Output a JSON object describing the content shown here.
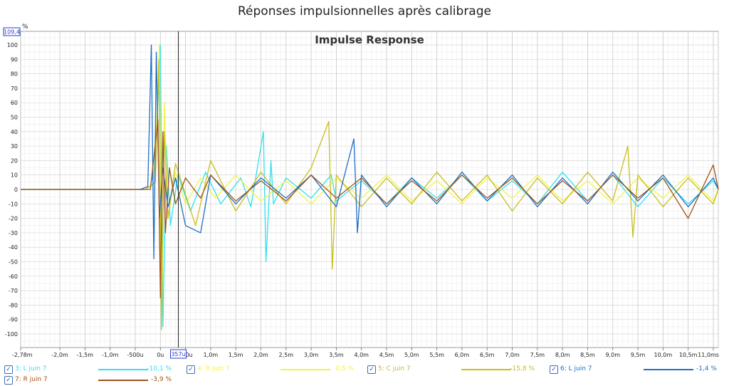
{
  "window_title": "Réponses impulsionnelles après calibrage",
  "chart_data": {
    "type": "line",
    "title": "Impulse Response",
    "ylabel": "%",
    "xlabel": "",
    "x_unit": "ms",
    "xlim": [
      -2.78,
      11.1
    ],
    "ylim": [
      -109.4,
      109.4
    ],
    "y_axis_max_readout": "109,4",
    "cursor_readout": "357u",
    "cursor_x": 0.357,
    "grid": true,
    "y_ticks": [
      100,
      90,
      80,
      70,
      60,
      50,
      40,
      30,
      20,
      10,
      0,
      -10,
      -20,
      -30,
      -40,
      -50,
      -60,
      -70,
      -80,
      -90,
      -100
    ],
    "x_ticks": [
      {
        "x": -2.78,
        "label": "-2,78m"
      },
      {
        "x": -2.0,
        "label": "-2,0m"
      },
      {
        "x": -1.5,
        "label": "-1,5m"
      },
      {
        "x": -1.0,
        "label": "-1,0m"
      },
      {
        "x": -0.5,
        "label": "-500u"
      },
      {
        "x": 0.0,
        "label": "0u"
      },
      {
        "x": 0.5,
        "label": "500u"
      },
      {
        "x": 1.0,
        "label": "1,0m"
      },
      {
        "x": 1.5,
        "label": "1,5m"
      },
      {
        "x": 2.0,
        "label": "2,0m"
      },
      {
        "x": 2.5,
        "label": "2,5m"
      },
      {
        "x": 3.0,
        "label": "3,0m"
      },
      {
        "x": 3.5,
        "label": "3,5m"
      },
      {
        "x": 4.0,
        "label": "4,0m"
      },
      {
        "x": 4.5,
        "label": "4,5m"
      },
      {
        "x": 5.0,
        "label": "5,0m"
      },
      {
        "x": 5.5,
        "label": "5,5m"
      },
      {
        "x": 6.0,
        "label": "6,0m"
      },
      {
        "x": 6.5,
        "label": "6,5m"
      },
      {
        "x": 7.0,
        "label": "7,0m"
      },
      {
        "x": 7.5,
        "label": "7,5m"
      },
      {
        "x": 8.0,
        "label": "8,0m"
      },
      {
        "x": 8.5,
        "label": "8,5m"
      },
      {
        "x": 9.0,
        "label": "9,0m"
      },
      {
        "x": 9.5,
        "label": "9,5m"
      },
      {
        "x": 10.0,
        "label": "10,0m"
      },
      {
        "x": 10.5,
        "label": "10,5m"
      },
      {
        "x": 11.0,
        "label": "11,0ms"
      }
    ],
    "series": [
      {
        "name": "3: L juin 7",
        "color": "#33e0ee",
        "value": "-10,1 %",
        "x": [
          -2.78,
          -0.3,
          -0.2,
          -0.12,
          -0.05,
          0.0,
          0.05,
          0.12,
          0.2,
          0.35,
          0.6,
          0.9,
          1.2,
          1.6,
          1.8,
          2.05,
          2.1,
          2.2,
          2.25,
          2.5,
          3.0,
          3.4,
          3.5,
          4.0,
          4.5,
          5.0,
          5.5,
          6.0,
          6.5,
          7.0,
          7.5,
          8.0,
          8.5,
          9.0,
          9.5,
          10.0,
          10.5,
          11.0,
          11.1
        ],
        "y": [
          0,
          0,
          2,
          15,
          60,
          100,
          -95,
          30,
          -25,
          10,
          -15,
          12,
          -10,
          8,
          -12,
          40,
          -50,
          20,
          -10,
          8,
          -6,
          10,
          -8,
          6,
          -10,
          8,
          -6,
          10,
          -8,
          6,
          -10,
          12,
          -8,
          10,
          -12,
          8,
          -10,
          6,
          0
        ]
      },
      {
        "name": "4: R juin 7",
        "color": "#f2f24a",
        "value": "0,5 %",
        "x": [
          -2.78,
          -0.3,
          -0.15,
          -0.08,
          -0.02,
          0.03,
          0.08,
          0.15,
          0.3,
          0.5,
          0.8,
          1.1,
          1.5,
          2.0,
          2.5,
          3.0,
          3.5,
          4.0,
          4.5,
          5.0,
          5.5,
          6.0,
          6.5,
          7.0,
          7.5,
          8.0,
          8.5,
          9.0,
          9.5,
          10.0,
          10.5,
          11.0,
          11.1
        ],
        "y": [
          0,
          0,
          3,
          40,
          100,
          -85,
          60,
          -20,
          12,
          -10,
          8,
          -6,
          10,
          -8,
          6,
          -10,
          8,
          -6,
          10,
          -8,
          6,
          -10,
          8,
          -6,
          10,
          -8,
          6,
          -10,
          8,
          -6,
          10,
          -8,
          0
        ]
      },
      {
        "name": "5: C juin 7",
        "color": "#c8bf1e",
        "value": "-15,8 %",
        "x": [
          -2.78,
          -0.3,
          -0.1,
          -0.03,
          0.02,
          0.08,
          0.15,
          0.3,
          0.7,
          1.0,
          1.5,
          2.0,
          2.5,
          3.0,
          3.35,
          3.42,
          3.5,
          4.0,
          4.5,
          5.0,
          5.5,
          6.0,
          6.5,
          7.0,
          7.5,
          8.0,
          8.5,
          9.0,
          9.3,
          9.4,
          9.5,
          10.0,
          10.5,
          11.0,
          11.1
        ],
        "y": [
          0,
          0,
          5,
          90,
          -97,
          40,
          -20,
          18,
          -25,
          20,
          -15,
          12,
          -10,
          15,
          47,
          -55,
          10,
          -12,
          8,
          -10,
          12,
          -8,
          10,
          -15,
          8,
          -10,
          12,
          -8,
          30,
          -33,
          10,
          -12,
          8,
          -10,
          0
        ]
      },
      {
        "name": "6: L juin 7",
        "color": "#1e6fc2",
        "value": "-1,4 %",
        "x": [
          -2.78,
          -0.4,
          -0.25,
          -0.18,
          -0.13,
          -0.08,
          -0.02,
          0.05,
          0.15,
          0.3,
          0.5,
          0.8,
          1.0,
          1.5,
          2.0,
          2.5,
          3.0,
          3.5,
          3.85,
          3.92,
          4.0,
          4.5,
          5.0,
          5.5,
          6.0,
          6.5,
          7.0,
          7.5,
          8.0,
          8.5,
          9.0,
          9.5,
          10.0,
          10.5,
          11.0,
          11.1
        ],
        "y": [
          0,
          0,
          2,
          100,
          -48,
          95,
          -20,
          15,
          -12,
          8,
          -25,
          -30,
          10,
          -10,
          8,
          -6,
          10,
          -12,
          35,
          -30,
          10,
          -12,
          8,
          -10,
          12,
          -8,
          10,
          -12,
          8,
          -10,
          12,
          -8,
          10,
          -12,
          8,
          0
        ]
      },
      {
        "name": "7: R juin 7",
        "color": "#a0521a",
        "value": "-3,9 %",
        "x": [
          -2.78,
          -0.2,
          -0.05,
          0.0,
          0.05,
          0.1,
          0.18,
          0.3,
          0.5,
          0.8,
          1.0,
          1.5,
          2.0,
          2.5,
          3.0,
          3.5,
          4.0,
          4.5,
          5.0,
          5.5,
          6.0,
          6.5,
          7.0,
          7.5,
          8.0,
          8.5,
          9.0,
          9.5,
          10.0,
          10.5,
          11.0,
          11.1
        ],
        "y": [
          0,
          0,
          48,
          -75,
          40,
          -30,
          15,
          -10,
          8,
          -6,
          10,
          -8,
          6,
          -8,
          10,
          -6,
          8,
          -10,
          6,
          -8,
          10,
          -6,
          8,
          -10,
          6,
          -8,
          10,
          -6,
          8,
          -20,
          17,
          0
        ]
      }
    ]
  }
}
